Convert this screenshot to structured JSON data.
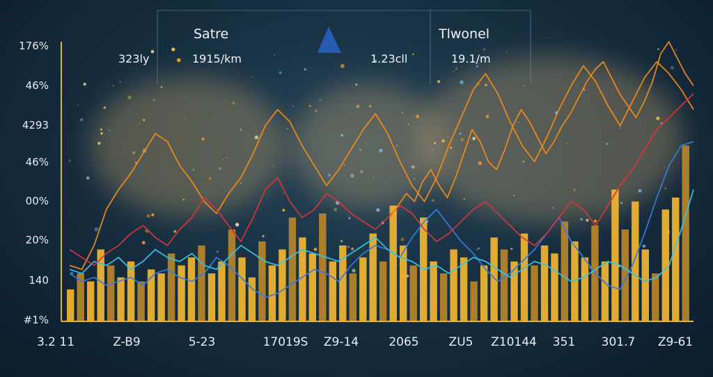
{
  "header": {
    "panels": [
      {
        "title": "Satre",
        "value_left": "323ly",
        "value_right": "1915/km"
      },
      {
        "title": "Tlwonel",
        "value_left": "1.23cll",
        "value_right": "19.1/m"
      }
    ]
  },
  "colors": {
    "bar": "#f2b632",
    "bar_dark": "#b8862a",
    "line_orange": "#f08a1c",
    "line_blue": "#3a7ad8",
    "line_cyan": "#38c4e6",
    "line_red": "#d2383a",
    "line_green": "#3fc45a",
    "axis": "#e3b43a"
  },
  "chart_data": {
    "type": "bar",
    "y_tick_labels": [
      "176%",
      "46%",
      "4293",
      "46%",
      "00%",
      "20%",
      "140",
      "#1%"
    ],
    "x_tick_labels": [
      "3.2 11",
      "Z-B9",
      "5-23",
      "17019S",
      "Z9-14",
      "2065",
      "ZU5",
      "Z10144",
      "351",
      "301.7",
      "Z9-61"
    ],
    "ylim": [
      0,
      7
    ],
    "grid": false,
    "bars": [
      0.8,
      1.2,
      1.0,
      1.8,
      1.4,
      1.1,
      1.5,
      1.0,
      1.3,
      1.2,
      1.7,
      1.4,
      1.6,
      1.9,
      1.2,
      1.5,
      2.3,
      1.6,
      1.1,
      2.0,
      1.4,
      1.8,
      2.6,
      2.1,
      1.7,
      2.7,
      1.5,
      1.9,
      1.2,
      1.6,
      2.2,
      1.5,
      2.9,
      1.9,
      1.4,
      2.6,
      1.5,
      1.2,
      1.8,
      1.6,
      1.0,
      1.4,
      2.1,
      1.8,
      1.5,
      2.2,
      1.4,
      1.9,
      1.7,
      2.5,
      2.0,
      1.6,
      2.4,
      1.5,
      3.3,
      2.3,
      3.0,
      1.8,
      1.2,
      2.8,
      3.1,
      4.4
    ],
    "series": [
      {
        "values": [
          1.4,
          1.3,
          1.9,
          2.8,
          3.3,
          3.7,
          4.2,
          4.7,
          4.5,
          3.9,
          3.5,
          3.0,
          2.7,
          3.2,
          3.6,
          4.2,
          4.9,
          5.3,
          5.0,
          4.4,
          3.9,
          3.4,
          3.8,
          4.3,
          4.8,
          5.2,
          4.7,
          4.0,
          3.4,
          3.0,
          3.6,
          4.4,
          5.1,
          5.8,
          6.2,
          5.7,
          5.0,
          4.4,
          4.0,
          4.6,
          5.3,
          5.9,
          6.4,
          6.0,
          5.4,
          4.9,
          5.5,
          6.1,
          6.5,
          6.2,
          5.8,
          5.3
        ]
      },
      {
        "values": [
          1.2,
          1.0,
          1.1,
          0.9,
          1.0,
          1.1,
          0.9,
          1.2,
          1.3,
          1.1,
          1.0,
          1.2,
          1.6,
          1.4,
          1.1,
          0.8,
          0.6,
          0.7,
          0.9,
          1.1,
          1.3,
          1.2,
          1.0,
          1.4,
          1.7,
          1.9,
          1.8,
          1.6,
          2.1,
          2.5,
          2.8,
          2.4,
          2.0,
          1.7,
          1.3,
          1.0,
          1.2,
          1.5,
          1.8,
          2.2,
          2.6,
          2.0,
          1.6,
          1.2,
          0.9,
          0.8,
          1.4,
          2.2,
          3.1,
          3.9,
          4.4,
          4.5
        ]
      },
      {
        "values": [
          1.3,
          1.2,
          1.5,
          1.4,
          1.6,
          1.3,
          1.5,
          1.8,
          1.6,
          1.5,
          1.7,
          1.4,
          1.3,
          1.6,
          1.9,
          1.7,
          1.5,
          1.4,
          1.6,
          1.8,
          1.7,
          1.6,
          1.5,
          1.7,
          1.9,
          2.1,
          1.8,
          1.6,
          1.5,
          1.3,
          1.4,
          1.2,
          1.4,
          1.6,
          1.5,
          1.3,
          1.1,
          1.3,
          1.5,
          1.4,
          1.2,
          1.0,
          1.1,
          1.3,
          1.5,
          1.4,
          1.2,
          1.0,
          1.1,
          1.4,
          2.3,
          3.3
        ]
      },
      {
        "values": [
          1.8,
          1.6,
          1.4,
          1.7,
          1.9,
          2.2,
          2.4,
          2.1,
          1.9,
          2.3,
          2.6,
          3.1,
          2.8,
          2.4,
          2.0,
          2.6,
          3.3,
          3.6,
          3.0,
          2.6,
          2.8,
          3.2,
          3.0,
          2.7,
          2.5,
          2.3,
          2.6,
          2.9,
          2.7,
          2.3,
          2.0,
          2.2,
          2.5,
          2.8,
          3.0,
          2.7,
          2.4,
          2.1,
          1.9,
          2.2,
          2.6,
          3.0,
          2.8,
          2.4,
          2.9,
          3.4,
          3.8,
          4.3,
          4.8,
          5.1,
          5.4,
          5.7
        ]
      },
      {
        "values": [
          2.6,
          2.9,
          3.2,
          3.0,
          3.5,
          3.8,
          3.4,
          3.1,
          3.6,
          4.2,
          4.8,
          4.5,
          4.0,
          3.8,
          4.3,
          4.9,
          5.3,
          5.0,
          4.6,
          4.2,
          4.5,
          4.9,
          5.2,
          5.6,
          6.0,
          6.3,
          6.5,
          6.1,
          5.7,
          5.4,
          5.1,
          5.5,
          6.0,
          6.7,
          7.0,
          6.6,
          6.2,
          5.9
        ]
      }
    ]
  }
}
